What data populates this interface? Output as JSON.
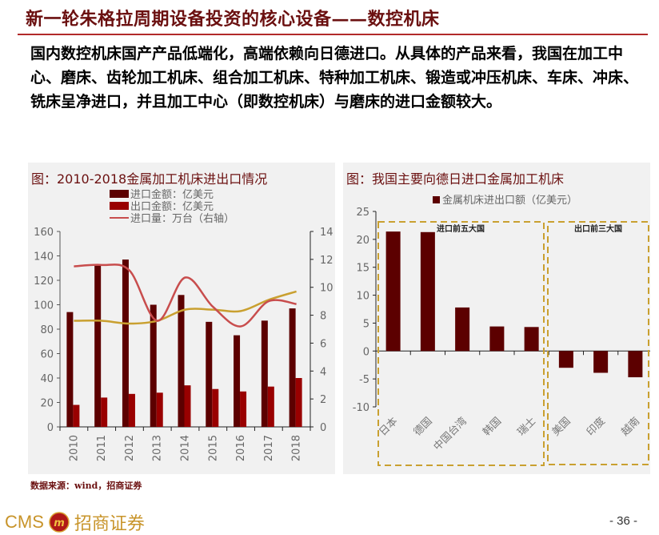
{
  "header": {
    "title": "新一轮朱格拉周期设备投资的核心设备——数控机床",
    "body": "国内数控机床国产产品低端化，高端依赖向日德进口。从具体的产品来看，我国在加工中心、磨床、齿轮加工机床、组合加工机床、特种加工机床、锻造或冲压机床、车床、冲床、铣床呈净进口，并且加工中心（即数控机床）与磨床的进口金额较大。"
  },
  "footer": {
    "source": "数据来源：wind，招商证券",
    "logo_en": "CMS",
    "logo_cn": "招商证券",
    "page": "- 36 -"
  },
  "colors": {
    "import_bar": "#5c0000",
    "export_bar": "#990000",
    "import_volume_line": "#c84d4d",
    "gold_line": "#c9a030",
    "title": "#6b1010",
    "panel_bg": "#f1f1f1",
    "dash_box": "#c9a030"
  },
  "chart_data": [
    {
      "type": "bar",
      "title": "图：2010-2018金属加工机床进出口情况",
      "categories": [
        "2010",
        "2011",
        "2012",
        "2013",
        "2014",
        "2015",
        "2016",
        "2017",
        "2018"
      ],
      "series": [
        {
          "name": "进口金额：亿美元",
          "type": "bar",
          "axis": "left",
          "values": [
            94,
            132,
            137,
            100,
            108,
            86,
            75,
            87,
            97
          ]
        },
        {
          "name": "出口金额：亿美元",
          "type": "bar",
          "axis": "left",
          "values": [
            18,
            24,
            27,
            28,
            34,
            31,
            29,
            33,
            40
          ]
        },
        {
          "name": "进口量：万台（右轴）",
          "type": "line",
          "axis": "right",
          "values": [
            11.5,
            11.6,
            11.2,
            7.6,
            10.7,
            8.6,
            7.2,
            9.0,
            8.8
          ]
        },
        {
          "name": "",
          "type": "line",
          "axis": "right",
          "values": [
            7.6,
            7.6,
            7.4,
            7.6,
            8.4,
            8.4,
            8.3,
            9.1,
            9.7
          ]
        }
      ],
      "legend": [
        "进口金额：亿美元",
        "出口金额：亿美元",
        "进口量：万台（右轴）"
      ],
      "ylim": [
        0,
        160
      ],
      "yticks": [
        0,
        20,
        40,
        60,
        80,
        100,
        120,
        140,
        160
      ],
      "y2lim": [
        0,
        14
      ],
      "y2ticks": [
        0,
        2,
        4,
        6,
        8,
        10,
        12,
        14
      ],
      "xlabel": "",
      "ylabel": "",
      "grid": false
    },
    {
      "type": "bar",
      "title": "图：我国主要向德日进口金属加工机床",
      "legend": [
        "金属机床进出口额（亿美元）"
      ],
      "categories": [
        "日本",
        "德国",
        "中国台湾",
        "韩国",
        "瑞士",
        "美国",
        "印度",
        "越南"
      ],
      "values": [
        21.4,
        21.3,
        7.8,
        4.4,
        4.3,
        -3.0,
        -3.9,
        -4.7
      ],
      "groups": [
        {
          "label": "进口前五大国",
          "members": [
            "日本",
            "德国",
            "中国台湾",
            "韩国",
            "瑞士"
          ]
        },
        {
          "label": "出口前三大国",
          "members": [
            "美国",
            "印度",
            "越南"
          ]
        }
      ],
      "ylim": [
        -10,
        25
      ],
      "yticks": [
        -10,
        -5,
        0,
        5,
        10,
        15,
        20,
        25
      ],
      "xlabel": "",
      "ylabel": "",
      "grid": false
    }
  ]
}
